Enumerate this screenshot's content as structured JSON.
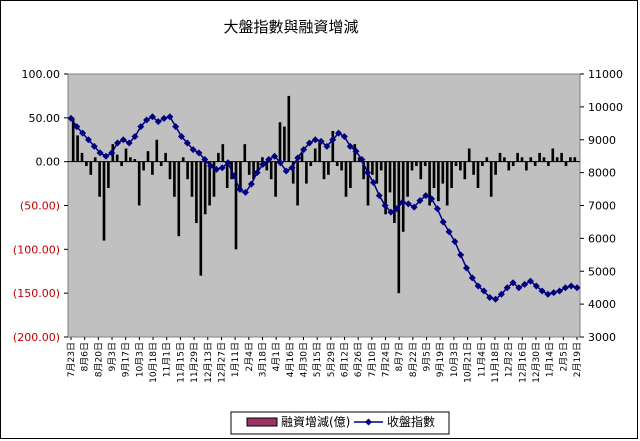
{
  "chart_data": {
    "type": "bar+line",
    "title": "大盤指數與融資增減",
    "y_left": {
      "ticks": [
        "100.00",
        "50.00",
        "0.00",
        "(50.00)",
        "(100.00)",
        "(150.00)",
        "(200.00)"
      ],
      "range": [
        -200,
        100
      ],
      "negative_color": "#c00000"
    },
    "y_right": {
      "ticks": [
        "11000",
        "10000",
        "9000",
        "8000",
        "7000",
        "6000",
        "5000",
        "4000",
        "3000"
      ],
      "range": [
        3000,
        11000
      ]
    },
    "x_ticks": [
      "7月23日",
      "8月6日",
      "8月20日",
      "9月3日",
      "9月17日",
      "10月3日",
      "10月18日",
      "11月1日",
      "11月15日",
      "11月29日",
      "12月13日",
      "12月27日",
      "1月11日",
      "2月4日",
      "3月18日",
      "4月1日",
      "4月16日",
      "4月30日",
      "5月15日",
      "5月29日",
      "6月12日",
      "6月26日",
      "7月10日",
      "7月24日",
      "8月7日",
      "8月22日",
      "9月5日",
      "9月19日",
      "10月3日",
      "10月21日",
      "11月4日",
      "11月18日",
      "12月2日",
      "12月16日",
      "12月30日",
      "1月14日",
      "2月5日",
      "2月19日"
    ],
    "legend": [
      {
        "name": "融資增減(億)",
        "color": "#993366"
      },
      {
        "name": "收盤指數",
        "color": "#000080"
      }
    ],
    "index_values": [
      9650,
      9400,
      9200,
      9000,
      8800,
      8600,
      8500,
      8600,
      8900,
      9000,
      8900,
      9100,
      9400,
      9600,
      9700,
      9550,
      9650,
      9700,
      9400,
      9100,
      8900,
      8700,
      8600,
      8400,
      8200,
      8100,
      8150,
      8300,
      7900,
      7500,
      7400,
      7650,
      8000,
      8250,
      8400,
      8500,
      8300,
      8050,
      8150,
      8450,
      8700,
      8900,
      9000,
      8950,
      8800,
      9000,
      9200,
      9100,
      8800,
      8650,
      8400,
      8000,
      7700,
      7300,
      7000,
      6800,
      6900,
      7100,
      7050,
      6950,
      7150,
      7300,
      7200,
      6900,
      6500,
      6200,
      5900,
      5500,
      5100,
      4800,
      4550,
      4400,
      4200,
      4150,
      4300,
      4500,
      4650,
      4500,
      4600,
      4700,
      4550,
      4400,
      4300,
      4350,
      4400,
      4500,
      4550,
      4500
    ],
    "margin_values": [
      50,
      30,
      10,
      -5,
      -15,
      5,
      -40,
      -90,
      -30,
      20,
      8,
      -5,
      15,
      5,
      3,
      -50,
      -10,
      12,
      -15,
      25,
      -5,
      10,
      -20,
      -40,
      -85,
      5,
      -20,
      -40,
      -70,
      -130,
      -60,
      -50,
      -40,
      10,
      20,
      -30,
      -20,
      -100,
      -35,
      20,
      -15,
      -20,
      -10,
      5,
      -10,
      -20,
      -40,
      45,
      40,
      75,
      -25,
      -50,
      10,
      -25,
      -5,
      15,
      25,
      -20,
      -15,
      35,
      -5,
      -10,
      -40,
      -30,
      20,
      5,
      -20,
      -50,
      -15,
      -25,
      -10,
      -60,
      -35,
      -70,
      -150,
      -80,
      -40,
      -10,
      -5,
      -20,
      -5,
      -50,
      -30,
      -45,
      -25,
      -50,
      -30,
      -5,
      -10,
      -20,
      15,
      -15,
      -30,
      -5,
      5,
      -40,
      -15,
      10,
      5,
      -10,
      -5,
      10,
      5,
      -10,
      5,
      -5,
      10,
      5,
      -5,
      15,
      5,
      10,
      -5,
      5,
      5
    ]
  }
}
